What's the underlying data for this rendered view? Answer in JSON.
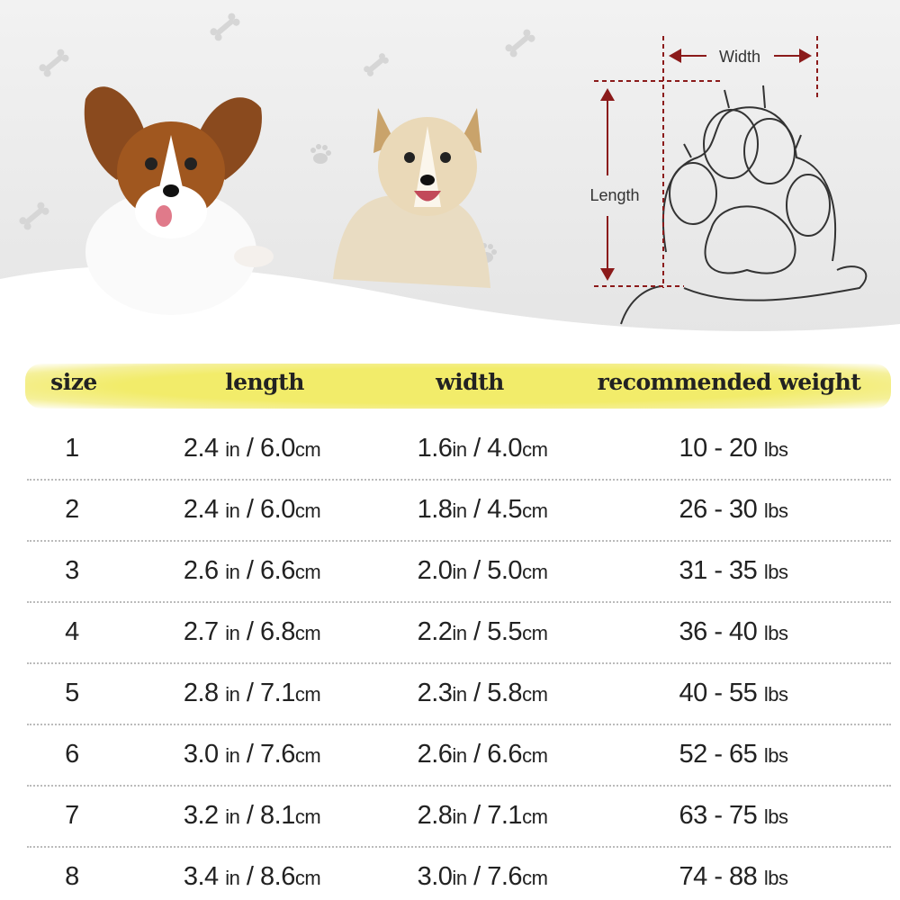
{
  "diagram": {
    "width_label": "Width",
    "length_label": "Length",
    "arrow_color": "#8b1a1a"
  },
  "colors": {
    "header_highlight": "#f2ec6a",
    "background_top": "#ececec"
  },
  "table": {
    "headers": [
      "size",
      "length",
      "width",
      "recommended weight"
    ],
    "rows": [
      {
        "size": "1",
        "length_in": "2.4",
        "length_cm": "6.0",
        "width_in": "1.6",
        "width_cm": "4.0",
        "weight": "10 - 20"
      },
      {
        "size": "2",
        "length_in": "2.4",
        "length_cm": "6.0",
        "width_in": "1.8",
        "width_cm": "4.5",
        "weight": "26 - 30"
      },
      {
        "size": "3",
        "length_in": "2.6",
        "length_cm": "6.6",
        "width_in": "2.0",
        "width_cm": "5.0",
        "weight": "31 - 35"
      },
      {
        "size": "4",
        "length_in": "2.7",
        "length_cm": "6.8",
        "width_in": "2.2",
        "width_cm": "5.5",
        "weight": "36 - 40"
      },
      {
        "size": "5",
        "length_in": "2.8",
        "length_cm": "7.1",
        "width_in": "2.3",
        "width_cm": "5.8",
        "weight": "40 - 55"
      },
      {
        "size": "6",
        "length_in": "3.0",
        "length_cm": "7.6",
        "width_in": "2.6",
        "width_cm": "6.6",
        "weight": "52 - 65"
      },
      {
        "size": "7",
        "length_in": "3.2",
        "length_cm": "8.1",
        "width_in": "2.8",
        "width_cm": "7.1",
        "weight": "63 - 75"
      },
      {
        "size": "8",
        "length_in": "3.4",
        "length_cm": "8.6",
        "width_in": "3.0",
        "width_cm": "7.6",
        "weight": "74 - 88"
      }
    ],
    "units": {
      "in": "in",
      "cm": "cm",
      "lbs": "lbs",
      "slash": "/"
    }
  }
}
